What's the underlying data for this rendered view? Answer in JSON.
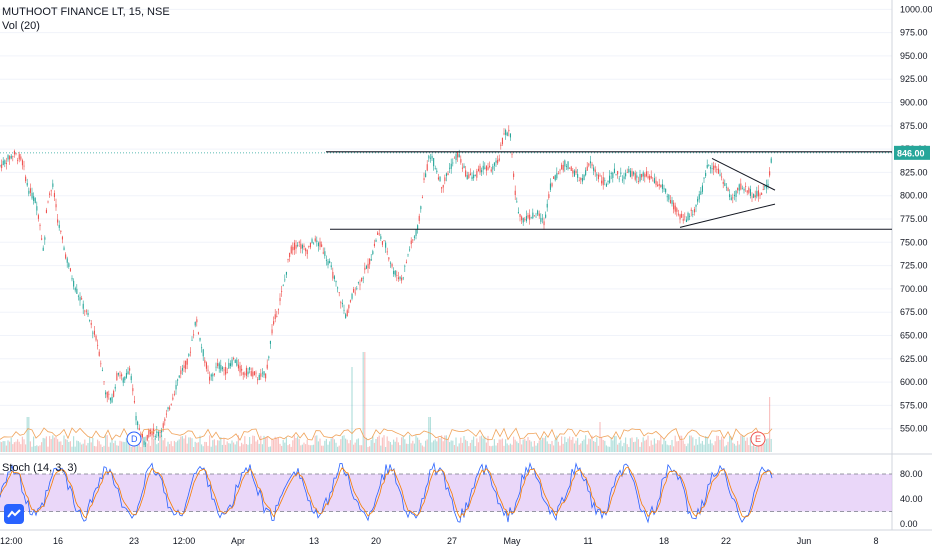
{
  "title": "MUTHOOT FINANCE LT, 15, NSE",
  "indicators": {
    "volume_label": "Vol (20)",
    "stoch_label": "Stoch (14, 3, 3)"
  },
  "colors": {
    "up": "#26a69a",
    "down": "#ef5350",
    "stoch_k": "#2962ff",
    "stoch_d": "#f57c00",
    "stoch_band": "#e1c6f7",
    "price_tag": "#26a69a"
  },
  "chart_data": {
    "type": "candlestick",
    "price_axis": {
      "min": 525,
      "max": 1010,
      "ticks": [
        "1000.00",
        "975.00",
        "950.00",
        "925.00",
        "900.00",
        "875.00",
        "850.00",
        "825.00",
        "800.00",
        "775.00",
        "750.00",
        "725.00",
        "700.00",
        "675.00",
        "650.00",
        "625.00",
        "600.00",
        "575.00",
        "550.00"
      ]
    },
    "last_price": "846.00",
    "stoch_axis": {
      "ticks": [
        "80.00",
        "40.00",
        "0.00"
      ],
      "upper_band": 80,
      "lower_band": 20
    },
    "time_labels": [
      "12:00",
      "16",
      "23",
      "12:00",
      "Apr",
      "13",
      "20",
      "27",
      "May",
      "11",
      "18",
      "22",
      "Jun",
      "8"
    ],
    "price_path": [
      {
        "t": 0,
        "p": 832
      },
      {
        "t": 14,
        "p": 845
      },
      {
        "t": 22,
        "p": 838
      },
      {
        "t": 28,
        "p": 808
      },
      {
        "t": 36,
        "p": 793
      },
      {
        "t": 40,
        "p": 770
      },
      {
        "t": 44,
        "p": 738
      },
      {
        "t": 47,
        "p": 795
      },
      {
        "t": 53,
        "p": 810
      },
      {
        "t": 58,
        "p": 772
      },
      {
        "t": 66,
        "p": 735
      },
      {
        "t": 74,
        "p": 705
      },
      {
        "t": 82,
        "p": 685
      },
      {
        "t": 90,
        "p": 665
      },
      {
        "t": 98,
        "p": 640
      },
      {
        "t": 106,
        "p": 588
      },
      {
        "t": 112,
        "p": 580
      },
      {
        "t": 118,
        "p": 612
      },
      {
        "t": 124,
        "p": 600
      },
      {
        "t": 130,
        "p": 618
      },
      {
        "t": 136,
        "p": 560
      },
      {
        "t": 144,
        "p": 535
      },
      {
        "t": 150,
        "p": 548
      },
      {
        "t": 158,
        "p": 544
      },
      {
        "t": 164,
        "p": 555
      },
      {
        "t": 172,
        "p": 582
      },
      {
        "t": 180,
        "p": 610
      },
      {
        "t": 188,
        "p": 622
      },
      {
        "t": 196,
        "p": 668
      },
      {
        "t": 202,
        "p": 636
      },
      {
        "t": 210,
        "p": 602
      },
      {
        "t": 218,
        "p": 618
      },
      {
        "t": 226,
        "p": 612
      },
      {
        "t": 234,
        "p": 625
      },
      {
        "t": 242,
        "p": 610
      },
      {
        "t": 250,
        "p": 612
      },
      {
        "t": 258,
        "p": 605
      },
      {
        "t": 266,
        "p": 608
      },
      {
        "t": 272,
        "p": 655
      },
      {
        "t": 278,
        "p": 680
      },
      {
        "t": 284,
        "p": 705
      },
      {
        "t": 290,
        "p": 740
      },
      {
        "t": 298,
        "p": 750
      },
      {
        "t": 306,
        "p": 740
      },
      {
        "t": 314,
        "p": 752
      },
      {
        "t": 322,
        "p": 745
      },
      {
        "t": 330,
        "p": 725
      },
      {
        "t": 338,
        "p": 698
      },
      {
        "t": 346,
        "p": 670
      },
      {
        "t": 354,
        "p": 698
      },
      {
        "t": 362,
        "p": 712
      },
      {
        "t": 370,
        "p": 730
      },
      {
        "t": 378,
        "p": 760
      },
      {
        "t": 386,
        "p": 745
      },
      {
        "t": 394,
        "p": 718
      },
      {
        "t": 402,
        "p": 710
      },
      {
        "t": 410,
        "p": 745
      },
      {
        "t": 418,
        "p": 765
      },
      {
        "t": 424,
        "p": 815
      },
      {
        "t": 430,
        "p": 845
      },
      {
        "t": 436,
        "p": 830
      },
      {
        "t": 442,
        "p": 810
      },
      {
        "t": 450,
        "p": 830
      },
      {
        "t": 458,
        "p": 845
      },
      {
        "t": 466,
        "p": 822
      },
      {
        "t": 474,
        "p": 820
      },
      {
        "t": 482,
        "p": 830
      },
      {
        "t": 490,
        "p": 828
      },
      {
        "t": 498,
        "p": 835
      },
      {
        "t": 504,
        "p": 868
      },
      {
        "t": 510,
        "p": 868
      },
      {
        "t": 516,
        "p": 792
      },
      {
        "t": 522,
        "p": 775
      },
      {
        "t": 530,
        "p": 778
      },
      {
        "t": 538,
        "p": 780
      },
      {
        "t": 544,
        "p": 770
      },
      {
        "t": 550,
        "p": 810
      },
      {
        "t": 558,
        "p": 825
      },
      {
        "t": 566,
        "p": 835
      },
      {
        "t": 574,
        "p": 825
      },
      {
        "t": 582,
        "p": 815
      },
      {
        "t": 590,
        "p": 835
      },
      {
        "t": 598,
        "p": 822
      },
      {
        "t": 606,
        "p": 812
      },
      {
        "t": 614,
        "p": 825
      },
      {
        "t": 622,
        "p": 820
      },
      {
        "t": 630,
        "p": 825
      },
      {
        "t": 638,
        "p": 818
      },
      {
        "t": 646,
        "p": 822
      },
      {
        "t": 654,
        "p": 815
      },
      {
        "t": 662,
        "p": 810
      },
      {
        "t": 670,
        "p": 795
      },
      {
        "t": 678,
        "p": 780
      },
      {
        "t": 686,
        "p": 775
      },
      {
        "t": 694,
        "p": 785
      },
      {
        "t": 702,
        "p": 805
      },
      {
        "t": 708,
        "p": 835
      },
      {
        "t": 716,
        "p": 830
      },
      {
        "t": 724,
        "p": 815
      },
      {
        "t": 732,
        "p": 795
      },
      {
        "t": 740,
        "p": 810
      },
      {
        "t": 748,
        "p": 806
      },
      {
        "t": 756,
        "p": 800
      },
      {
        "t": 762,
        "p": 804
      },
      {
        "t": 768,
        "p": 812
      },
      {
        "t": 772,
        "p": 846
      }
    ],
    "volume_spikes": [
      {
        "t": 352,
        "v": 0.85
      },
      {
        "t": 364,
        "v": 1.0
      },
      {
        "t": 770,
        "v": 0.55
      },
      {
        "t": 28,
        "v": 0.35
      },
      {
        "t": 600,
        "v": 0.3
      },
      {
        "t": 430,
        "v": 0.35
      }
    ],
    "drawings": {
      "resistance": 846,
      "support": 764,
      "triangle_upper": [
        {
          "t": 712,
          "p": 840
        },
        {
          "t": 775,
          "p": 806
        }
      ],
      "triangle_lower": [
        {
          "t": 680,
          "p": 766
        },
        {
          "t": 775,
          "p": 791
        }
      ],
      "dotted_level": 846
    },
    "event_markers": [
      "D",
      "E"
    ]
  }
}
